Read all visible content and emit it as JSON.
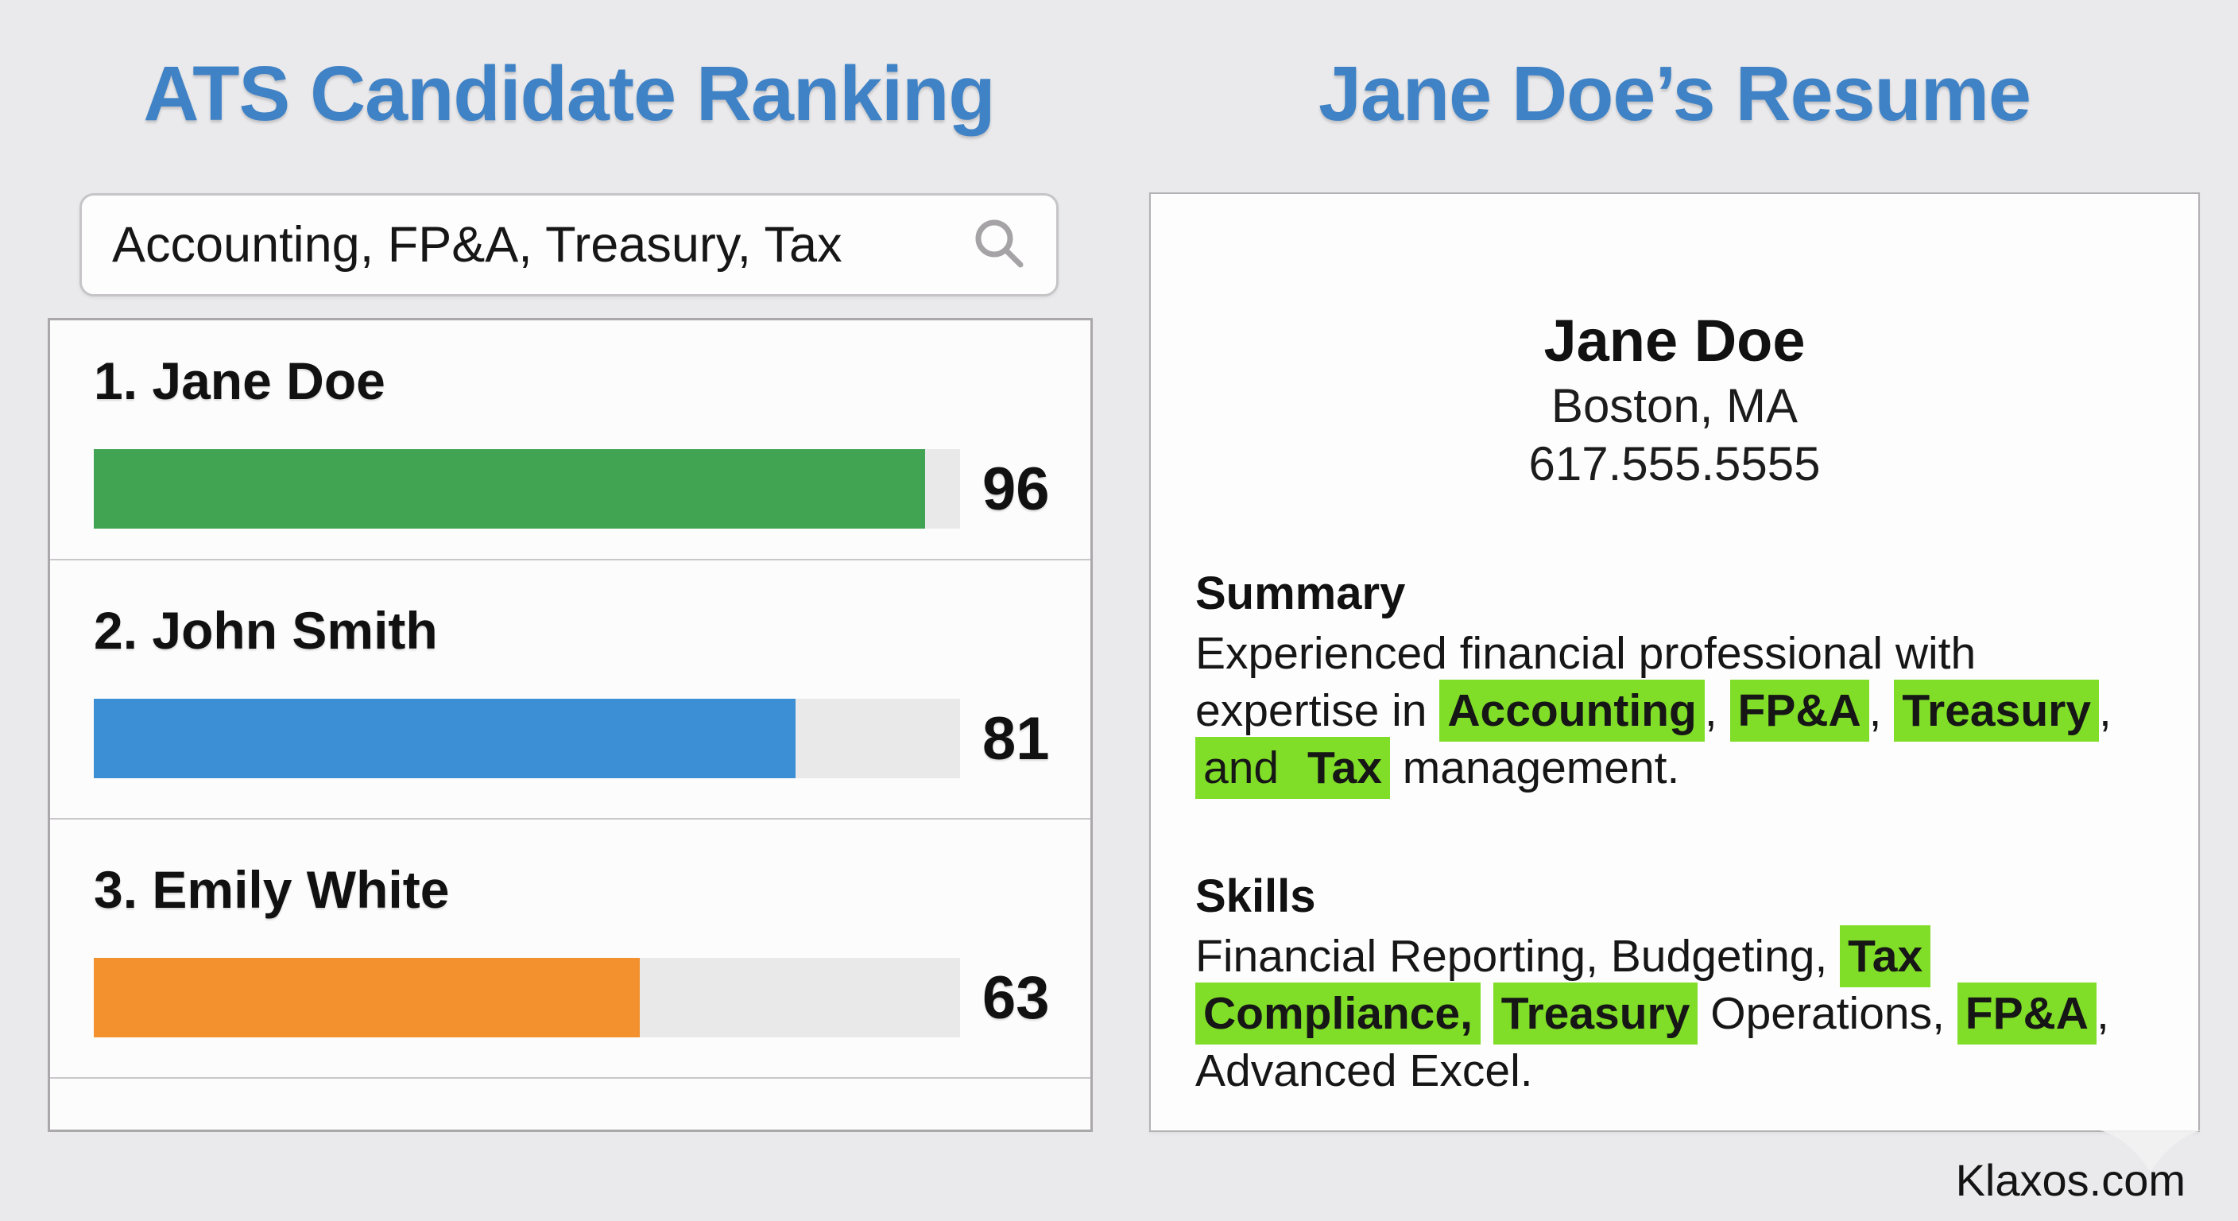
{
  "page": {
    "background": "#eaeaec",
    "footer_site": "Klaxos.com"
  },
  "colors": {
    "accent_blue": "#3f82c5",
    "bar_green": "#41a452",
    "bar_blue": "#3c8fd4",
    "bar_orange": "#f4912f",
    "bar_track": "#e9e9e9",
    "highlight_green": "#80dd28"
  },
  "left": {
    "title": "ATS Candidate Ranking",
    "search": {
      "value": "Accounting, FP&A, Treasury, Tax",
      "icon": "magnifier"
    },
    "score_max": 100,
    "candidates": [
      {
        "label": "1. Jane Doe",
        "score": 96,
        "color": "#41a452"
      },
      {
        "label": "2. John Smith",
        "score": 81,
        "color": "#3c8fd4"
      },
      {
        "label": "3. Emily White",
        "score": 63,
        "color": "#f4912f"
      }
    ]
  },
  "chart_data": {
    "type": "bar",
    "orientation": "horizontal",
    "title": "ATS Candidate Ranking",
    "categories": [
      "Jane Doe",
      "John Smith",
      "Emily White"
    ],
    "values": [
      96,
      81,
      63
    ],
    "xlim": [
      0,
      100
    ],
    "bar_colors": [
      "#41a452",
      "#3c8fd4",
      "#f4912f"
    ],
    "grid": false,
    "legend": false
  },
  "right": {
    "title": "Jane Doe’s Resume",
    "resume": {
      "name": "Jane Doe",
      "location": "Boston, MA",
      "phone": "617.555.5555",
      "sections": [
        {
          "heading": "Summary",
          "segments": [
            {
              "text": "Experienced financial professional with\nexpertise in "
            },
            {
              "text": "Accounting",
              "highlight": true,
              "bold": true
            },
            {
              "text": ", "
            },
            {
              "text": "FP&A",
              "highlight": true,
              "bold": true
            },
            {
              "text": ", "
            },
            {
              "text": "Treasury",
              "highlight": true,
              "bold": true
            },
            {
              "text": ",\n"
            },
            {
              "text": "and ",
              "highlight": true
            },
            {
              "text": "Tax",
              "highlight": true,
              "bold": true
            },
            {
              "text": " management."
            }
          ]
        },
        {
          "heading": "Skills",
          "segments": [
            {
              "text": "Financial Reporting, Budgeting, "
            },
            {
              "text": "Tax",
              "highlight": true,
              "bold": true
            },
            {
              "text": "\n"
            },
            {
              "text": "Compliance,",
              "highlight": true,
              "bold": true
            },
            {
              "text": " "
            },
            {
              "text": "Treasury",
              "highlight": true,
              "bold": true
            },
            {
              "text": " Operations, "
            },
            {
              "text": "FP&A",
              "highlight": true,
              "bold": true
            },
            {
              "text": ",\n"
            },
            {
              "text": "Advanced Excel."
            }
          ]
        }
      ]
    }
  }
}
